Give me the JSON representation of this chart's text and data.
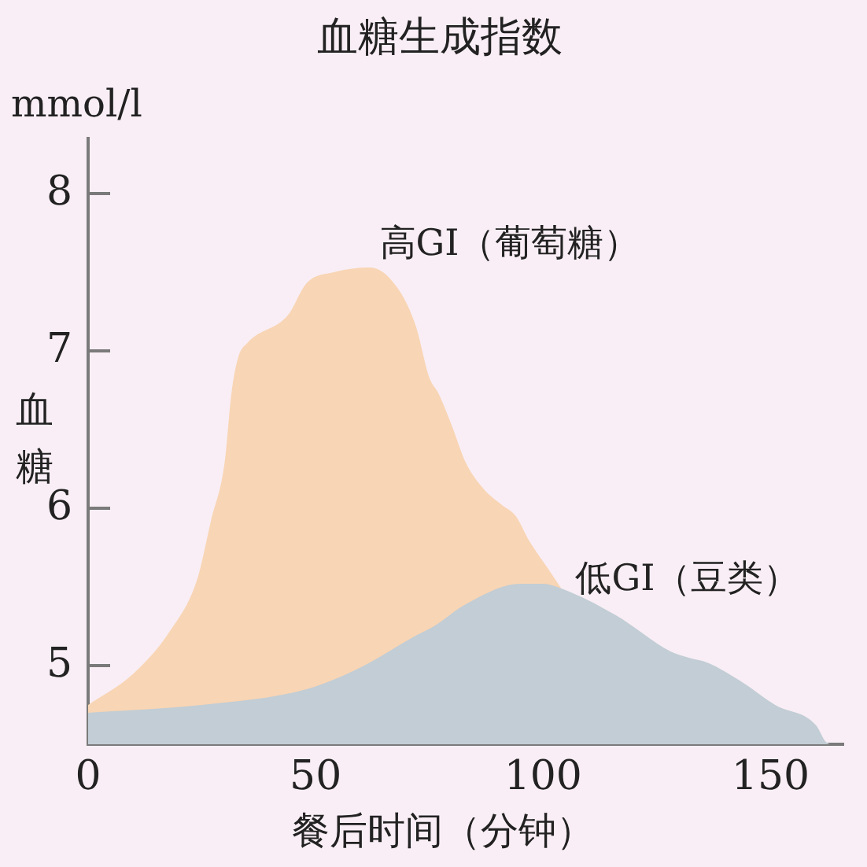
{
  "chart_data": {
    "type": "area",
    "title": "血糖生成指数",
    "xlabel": "餐后时间（分钟）",
    "ylabel": "血糖",
    "annotations": [
      "mmol/l"
    ],
    "xlim": [
      0,
      166
    ],
    "xticks": [
      0,
      50,
      100,
      150
    ],
    "ylim": [
      4.5,
      8.35
    ],
    "yticks": [
      5,
      6,
      7,
      8
    ],
    "series": [
      {
        "name": "高GI（葡萄糖）",
        "color": "#f8d5b4",
        "x": [
          0,
          10,
          18,
          24,
          27,
          30,
          31.5,
          33,
          35,
          44,
          48,
          54,
          62,
          68,
          72,
          75,
          77,
          80,
          83,
          87,
          91,
          94,
          97,
          101,
          104
        ],
        "values": [
          4.75,
          4.95,
          5.22,
          5.55,
          5.92,
          6.29,
          6.73,
          6.96,
          7.05,
          7.23,
          7.43,
          7.5,
          7.53,
          7.4,
          7.16,
          6.83,
          6.73,
          6.52,
          6.29,
          6.12,
          6.02,
          5.95,
          5.79,
          5.62,
          5.49
        ]
      },
      {
        "name": "低GI（豆类）",
        "color": "#c2cdd5",
        "x": [
          0,
          25,
          48,
          60,
          72,
          76,
          83,
          95,
          100,
          104,
          116,
          128,
          132,
          136,
          144,
          151,
          160,
          162,
          163
        ],
        "values": [
          4.7,
          4.75,
          4.85,
          4.99,
          5.19,
          5.25,
          5.39,
          5.52,
          5.52,
          5.49,
          5.32,
          5.09,
          5.05,
          5.02,
          4.89,
          4.75,
          4.62,
          4.52,
          4.5
        ]
      }
    ]
  }
}
